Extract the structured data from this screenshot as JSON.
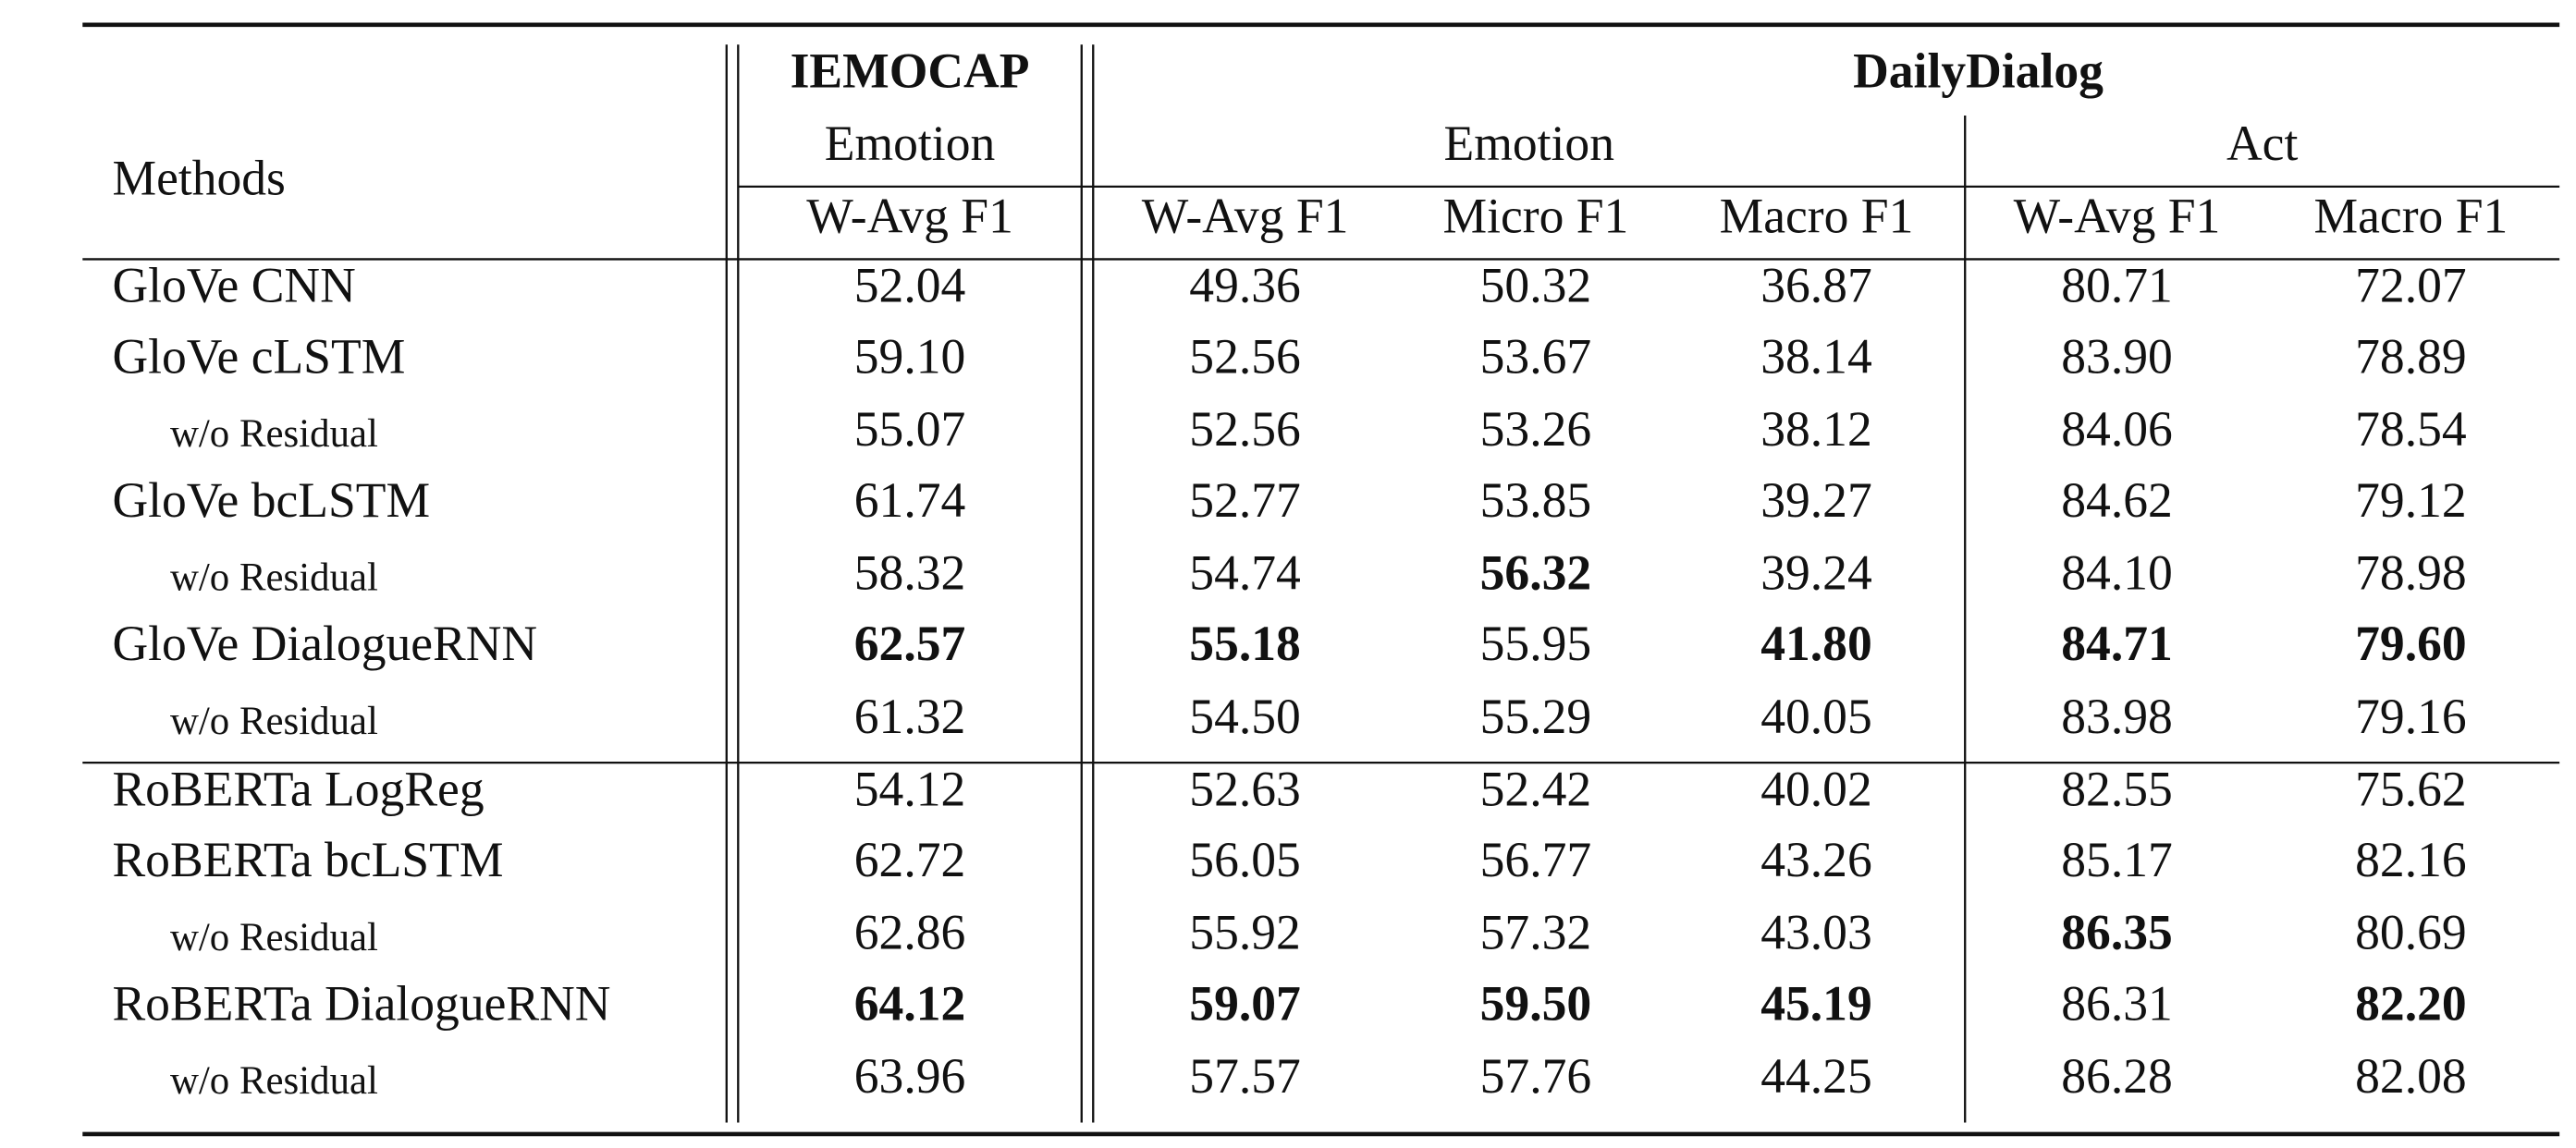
{
  "header": {
    "methods": "Methods",
    "groups": [
      {
        "dataset": "IEMOCAP",
        "subgroups": [
          {
            "task": "Emotion",
            "metrics": [
              "W-Avg F1"
            ]
          }
        ]
      },
      {
        "dataset": "DailyDialog",
        "subgroups": [
          {
            "task": "Emotion",
            "metrics": [
              "W-Avg F1",
              "Micro F1",
              "Macro F1"
            ]
          },
          {
            "task": "Act",
            "metrics": [
              "W-Avg F1",
              "Macro F1"
            ]
          }
        ]
      }
    ]
  },
  "rows": [
    {
      "method": "GloVe CNN",
      "values": [
        "52.04",
        "49.36",
        "50.32",
        "36.87",
        "80.71",
        "72.07"
      ],
      "bold": []
    },
    {
      "method": "GloVe cLSTM",
      "values": [
        "59.10",
        "52.56",
        "53.67",
        "38.14",
        "83.90",
        "78.89"
      ],
      "bold": []
    },
    {
      "method": "w/o Residual",
      "sub": true,
      "values": [
        "55.07",
        "52.56",
        "53.26",
        "38.12",
        "84.06",
        "78.54"
      ],
      "bold": []
    },
    {
      "method": "GloVe bcLSTM",
      "values": [
        "61.74",
        "52.77",
        "53.85",
        "39.27",
        "84.62",
        "79.12"
      ],
      "bold": []
    },
    {
      "method": "w/o Residual",
      "sub": true,
      "values": [
        "58.32",
        "54.74",
        "56.32",
        "39.24",
        "84.10",
        "78.98"
      ],
      "bold": [
        2
      ]
    },
    {
      "method": "GloVe DialogueRNN",
      "values": [
        "62.57",
        "55.18",
        "55.95",
        "41.80",
        "84.71",
        "79.60"
      ],
      "bold": [
        0,
        1,
        3,
        4,
        5
      ]
    },
    {
      "method": "w/o Residual",
      "sub": true,
      "values": [
        "61.32",
        "54.50",
        "55.29",
        "40.05",
        "83.98",
        "79.16"
      ],
      "bold": []
    },
    {
      "method": "RoBERTa LogReg",
      "values": [
        "54.12",
        "52.63",
        "52.42",
        "40.02",
        "82.55",
        "75.62"
      ],
      "bold": []
    },
    {
      "method": "RoBERTa bcLSTM",
      "values": [
        "62.72",
        "56.05",
        "56.77",
        "43.26",
        "85.17",
        "82.16"
      ],
      "bold": []
    },
    {
      "method": "w/o Residual",
      "sub": true,
      "values": [
        "62.86",
        "55.92",
        "57.32",
        "43.03",
        "86.35",
        "80.69"
      ],
      "bold": [
        4
      ]
    },
    {
      "method": "RoBERTa DialogueRNN",
      "values": [
        "64.12",
        "59.07",
        "59.50",
        "45.19",
        "86.31",
        "82.20"
      ],
      "bold": [
        0,
        1,
        2,
        3,
        5
      ]
    },
    {
      "method": "w/o Residual",
      "sub": true,
      "values": [
        "63.96",
        "57.57",
        "57.76",
        "44.25",
        "86.28",
        "82.08"
      ],
      "bold": []
    }
  ]
}
